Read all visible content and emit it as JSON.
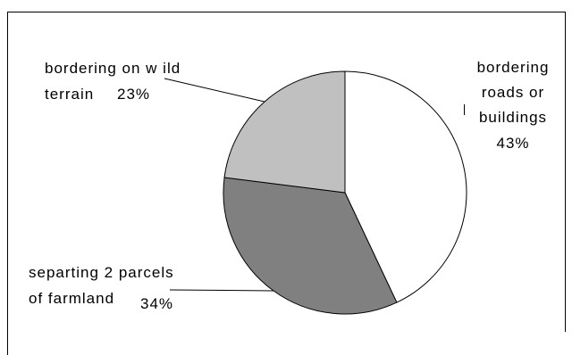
{
  "chart_data": {
    "type": "pie",
    "slices": [
      {
        "label_lines": [
          "bordering",
          "roads or",
          "buildings"
        ],
        "value": 43,
        "percent_label": "43%",
        "color": "#ffffff"
      },
      {
        "label_lines": [
          "separting 2 parcels",
          "of farmland"
        ],
        "value": 34,
        "percent_label": "34%",
        "color": "#808080"
      },
      {
        "label_lines": [
          "bordering on w ild",
          "terrain"
        ],
        "value": 23,
        "percent_label": "23%",
        "color": "#c0c0c0"
      }
    ]
  }
}
